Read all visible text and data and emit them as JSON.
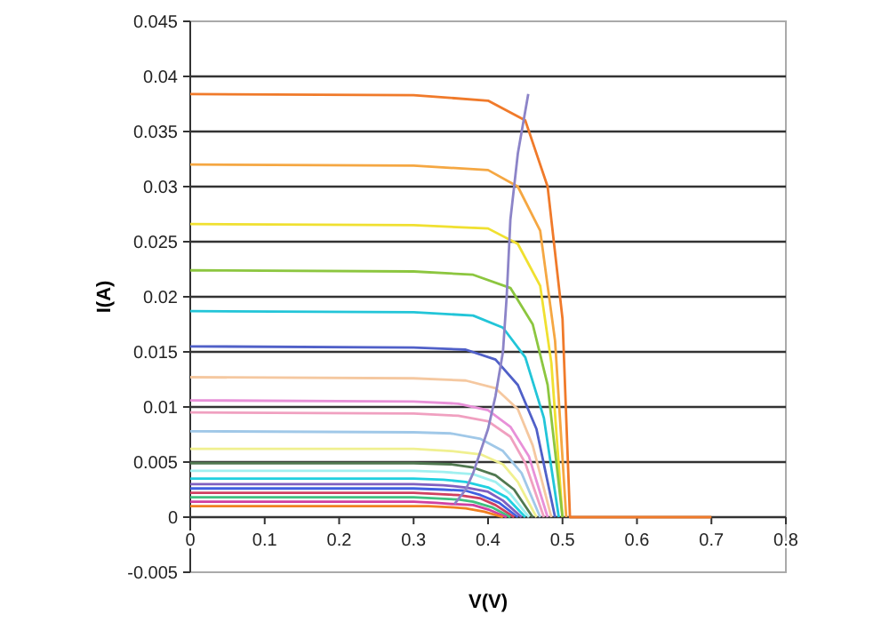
{
  "chart_data": {
    "type": "line",
    "xlabel": "V(V)",
    "ylabel": "I(A)",
    "xlim": [
      0,
      0.8
    ],
    "xticks": [
      0,
      0.1,
      0.2,
      0.3,
      0.4,
      0.5,
      0.6,
      0.7,
      0.8
    ],
    "ylim": [
      -0.005,
      0.045
    ],
    "yticks": [
      -0.005,
      0,
      0.005,
      0.01,
      0.015,
      0.02,
      0.025,
      0.03,
      0.035,
      0.04,
      0.045
    ],
    "grid": "y",
    "marker": "none",
    "line_style": "solid",
    "series": [
      {
        "color": "#f07a2a",
        "x": [
          0,
          0.3,
          0.4,
          0.45,
          0.48,
          0.5,
          0.51,
          0.7
        ],
        "values": [
          0.0384,
          0.0383,
          0.0378,
          0.036,
          0.03,
          0.018,
          0,
          0
        ]
      },
      {
        "color": "#f5a742",
        "x": [
          0,
          0.3,
          0.4,
          0.44,
          0.47,
          0.49,
          0.505
        ],
        "values": [
          0.032,
          0.0319,
          0.0315,
          0.03,
          0.026,
          0.016,
          0
        ]
      },
      {
        "color": "#f0e030",
        "x": [
          0,
          0.3,
          0.4,
          0.44,
          0.47,
          0.485,
          0.5
        ],
        "values": [
          0.0266,
          0.0265,
          0.0262,
          0.0248,
          0.021,
          0.014,
          0
        ]
      },
      {
        "color": "#8cc63f",
        "x": [
          0,
          0.3,
          0.38,
          0.43,
          0.46,
          0.48,
          0.5
        ],
        "values": [
          0.0224,
          0.0223,
          0.022,
          0.0208,
          0.0175,
          0.012,
          0
        ]
      },
      {
        "color": "#22c5d8",
        "x": [
          0,
          0.3,
          0.38,
          0.42,
          0.45,
          0.475,
          0.495
        ],
        "values": [
          0.0187,
          0.0186,
          0.0183,
          0.0172,
          0.0145,
          0.009,
          0
        ]
      },
      {
        "color": "#5060c8",
        "x": [
          0,
          0.3,
          0.37,
          0.41,
          0.44,
          0.465,
          0.49
        ],
        "values": [
          0.0155,
          0.0154,
          0.0152,
          0.0143,
          0.012,
          0.008,
          0
        ]
      },
      {
        "color": "#f5c8a0",
        "x": [
          0,
          0.3,
          0.37,
          0.41,
          0.44,
          0.46,
          0.485
        ],
        "values": [
          0.0127,
          0.0126,
          0.0124,
          0.0117,
          0.0098,
          0.0065,
          0
        ]
      },
      {
        "color": "#e890d8",
        "x": [
          0,
          0.3,
          0.36,
          0.4,
          0.43,
          0.455,
          0.48
        ],
        "values": [
          0.0106,
          0.0105,
          0.0103,
          0.0097,
          0.0082,
          0.0055,
          0
        ]
      },
      {
        "color": "#f0a0c0",
        "x": [
          0,
          0.3,
          0.36,
          0.4,
          0.43,
          0.45,
          0.475
        ],
        "values": [
          0.0095,
          0.0094,
          0.0092,
          0.0087,
          0.0073,
          0.0049,
          0
        ]
      },
      {
        "color": "#a0c8e8",
        "x": [
          0,
          0.3,
          0.35,
          0.39,
          0.42,
          0.445,
          0.47
        ],
        "values": [
          0.0078,
          0.0077,
          0.0076,
          0.0071,
          0.006,
          0.004,
          0
        ]
      },
      {
        "color": "#f0f090",
        "x": [
          0,
          0.3,
          0.35,
          0.39,
          0.42,
          0.44,
          0.465
        ],
        "values": [
          0.0062,
          0.0062,
          0.006,
          0.0057,
          0.0048,
          0.0032,
          0
        ]
      },
      {
        "color": "#507850",
        "x": [
          0,
          0.3,
          0.35,
          0.38,
          0.41,
          0.435,
          0.46
        ],
        "values": [
          0.0049,
          0.0049,
          0.0048,
          0.0045,
          0.0038,
          0.0025,
          0
        ]
      },
      {
        "color": "#a0f0f0",
        "x": [
          0,
          0.3,
          0.34,
          0.38,
          0.41,
          0.43,
          0.455
        ],
        "values": [
          0.0042,
          0.0042,
          0.0041,
          0.0039,
          0.0032,
          0.0021,
          0
        ]
      },
      {
        "color": "#20d0e0",
        "x": [
          0,
          0.3,
          0.34,
          0.37,
          0.4,
          0.425,
          0.45
        ],
        "values": [
          0.0035,
          0.0035,
          0.0034,
          0.0032,
          0.0027,
          0.0018,
          0
        ]
      },
      {
        "color": "#8060c0",
        "x": [
          0,
          0.3,
          0.34,
          0.37,
          0.4,
          0.42,
          0.445
        ],
        "values": [
          0.003,
          0.003,
          0.0029,
          0.0027,
          0.0023,
          0.0015,
          0
        ]
      },
      {
        "color": "#4060e0",
        "x": [
          0,
          0.3,
          0.34,
          0.37,
          0.39,
          0.415,
          0.44
        ],
        "values": [
          0.0026,
          0.0026,
          0.0025,
          0.0024,
          0.002,
          0.0013,
          0
        ]
      },
      {
        "color": "#d04060",
        "x": [
          0,
          0.3,
          0.33,
          0.36,
          0.39,
          0.41,
          0.435
        ],
        "values": [
          0.0022,
          0.0022,
          0.0021,
          0.002,
          0.0017,
          0.0011,
          0
        ]
      },
      {
        "color": "#40c080",
        "x": [
          0,
          0.3,
          0.33,
          0.36,
          0.38,
          0.405,
          0.43
        ],
        "values": [
          0.0018,
          0.0018,
          0.0017,
          0.0016,
          0.0014,
          0.0009,
          0
        ]
      },
      {
        "color": "#d040a0",
        "x": [
          0,
          0.3,
          0.33,
          0.35,
          0.38,
          0.4,
          0.425
        ],
        "values": [
          0.0014,
          0.0014,
          0.0013,
          0.0012,
          0.0011,
          0.0007,
          0
        ]
      },
      {
        "color": "#f08020",
        "x": [
          0,
          0.3,
          0.32,
          0.35,
          0.37,
          0.395,
          0.42
        ],
        "values": [
          0.001,
          0.001,
          0.001,
          0.0009,
          0.0008,
          0.0005,
          0
        ]
      },
      {
        "color": "#8c84c8",
        "x": [
          0.355,
          0.37,
          0.38,
          0.39,
          0.4,
          0.41,
          0.42,
          0.425,
          0.43,
          0.44,
          0.454
        ],
        "values": [
          0.0012,
          0.0025,
          0.004,
          0.006,
          0.008,
          0.011,
          0.015,
          0.02,
          0.027,
          0.033,
          0.0384
        ]
      }
    ]
  }
}
